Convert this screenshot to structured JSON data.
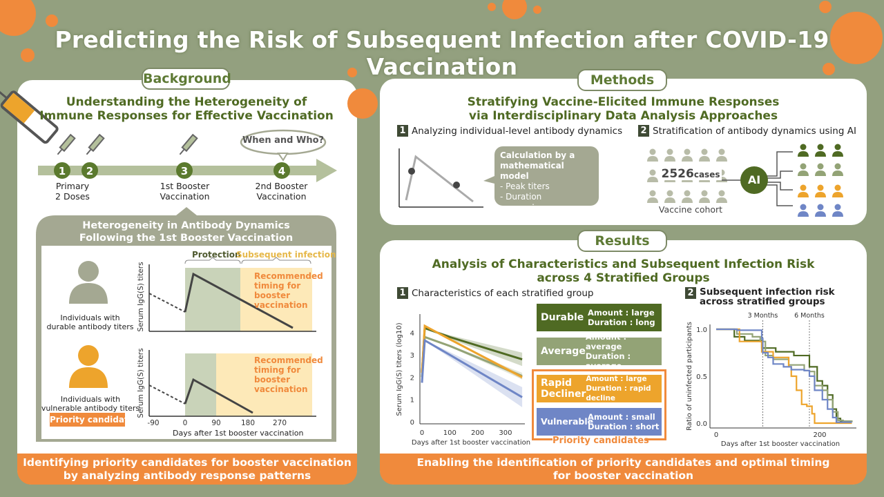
{
  "title": "Predicting the Risk of Subsequent Infection after COVID-19 Vaccination",
  "colors": {
    "background": "#93a07f",
    "dark_green": "#4f6a23",
    "light_green": "#93a376",
    "orange": "#f08a3c",
    "amber": "#eda42c",
    "blue": "#6f86c6",
    "gray": "#a4a892"
  },
  "background": {
    "pill": "Background",
    "heading_1": "Understanding the Heterogeneity of",
    "heading_2": "Immune Responses for Effective Vaccination",
    "timeline": [
      {
        "num": "1",
        "label": ""
      },
      {
        "num": "2",
        "label": ""
      },
      {
        "num": "3",
        "label": "1st Booster\nVaccination"
      },
      {
        "num": "4",
        "label": "2nd Booster\nVaccination"
      }
    ],
    "primary_label": "Primary\n2 Doses",
    "question": "When and Who?",
    "box_title_1": "Heterogeneity in Antibody Dynamics",
    "box_title_2": "Following the 1st Booster Vaccination",
    "protection": "Protection",
    "subsequent_infection": "Subsequent infection",
    "durable_label": "Individuals with\ndurable antibody titers",
    "vulnerable_label": "Individuals with\nvulnerable antibody titers",
    "priority": "Priority candidates",
    "recommended": "Recommended\ntiming for\nbooster\nvaccination",
    "ylabel": "Serum IgG(S) titers",
    "xticks": [
      "-90",
      "0",
      "90",
      "180",
      "270"
    ],
    "xlabel": "Days after 1st booster vaccination",
    "footer": "Identifying priority candidates for booster vaccination\nby analyzing antibody response patterns"
  },
  "methods": {
    "pill": "Methods",
    "heading_1": "Stratifying Vaccine-Elicited Immune Responses",
    "heading_2": "via Interdisciplinary Data Analysis Approaches",
    "step1_num": "1",
    "step1": "Analyzing individual-level antibody dynamics",
    "bubble_title": "Calculation by a\nmathematical model",
    "bubble_items": [
      "- Peak titers",
      "- Duration",
      "⋮"
    ],
    "step2_num": "2",
    "step2": "Stratification of antibody dynamics using AI",
    "cases_num": "2526",
    "cases_unit": "cases",
    "cohort": "Vaccine cohort",
    "ai": "AI"
  },
  "results": {
    "pill": "Results",
    "heading_1": "Analysis of Characteristics and Subsequent Infection Risk",
    "heading_2": "across 4 Stratified Groups",
    "step1_num": "1",
    "step1": "Characteristics of each stratified group",
    "step2_num": "2",
    "step2": "Subsequent infection risk\nacross stratified groups",
    "groups": [
      {
        "name": "Durable",
        "amount": "Amount  : large",
        "duration": "Duration : long"
      },
      {
        "name": "Average",
        "amount": "Amount  : average",
        "duration": "Duration : average"
      },
      {
        "name": "Rapid\nDecliner",
        "amount": "Amount : large",
        "duration": "Duration : rapid decline"
      },
      {
        "name": "Vulnerable",
        "amount": "Amount  : small",
        "duration": "Duration : short"
      }
    ],
    "priority": "Priority candidates",
    "footer": "Enabling the identification of priority candidates and optimal timing\nfor booster vaccination"
  },
  "chart_data": [
    {
      "type": "line",
      "title": "Characteristics of each stratified group",
      "xlabel": "Days after 1st booster vaccination",
      "ylabel": "Serum IgG(S) titers (log10)",
      "xlim": [
        0,
        370
      ],
      "ylim": [
        0,
        4.5
      ],
      "xticks": [
        "0",
        "100",
        "200",
        "300"
      ],
      "yticks": [
        "0",
        "1",
        "2",
        "3",
        "4"
      ],
      "series": [
        {
          "name": "Durable",
          "color": "#4f6a23",
          "points": [
            [
              0,
              2.2
            ],
            [
              10,
              4.2
            ],
            [
              100,
              3.8
            ],
            [
              360,
              2.8
            ]
          ],
          "band": 0.3
        },
        {
          "name": "Average",
          "color": "#93a376",
          "points": [
            [
              0,
              2.0
            ],
            [
              10,
              3.8
            ],
            [
              100,
              3.4
            ],
            [
              360,
              2.05
            ]
          ],
          "band": 0.15
        },
        {
          "name": "Rapid Decliner",
          "color": "#eda42c",
          "points": [
            [
              0,
              2.2
            ],
            [
              10,
              4.3
            ],
            [
              100,
              3.7
            ],
            [
              360,
              2.0
            ]
          ],
          "band": 0.1
        },
        {
          "name": "Vulnerable",
          "color": "#6f86c6",
          "points": [
            [
              0,
              1.75
            ],
            [
              10,
              3.65
            ],
            [
              100,
              3.0
            ],
            [
              360,
              1.1
            ]
          ],
          "band": 0.45
        }
      ]
    },
    {
      "type": "line",
      "title": "Subsequent infection risk across stratified groups",
      "xlabel": "Days after 1st booster vaccination",
      "ylabel": "Ratio of uninfected participants",
      "xlim": [
        0,
        270
      ],
      "ylim": [
        0,
        1
      ],
      "xticks": [
        "0",
        "200"
      ],
      "yticks": [
        "0.0",
        "0.5",
        "1.0"
      ],
      "annotations": [
        {
          "x": 90,
          "label": "3 Months"
        },
        {
          "x": 180,
          "label": "6 Months"
        }
      ],
      "series": [
        {
          "name": "Durable",
          "color": "#4f6a23",
          "points": [
            [
              0,
              1
            ],
            [
              35,
              1
            ],
            [
              35,
              0.92
            ],
            [
              55,
              0.92
            ],
            [
              55,
              0.88
            ],
            [
              85,
              0.88
            ],
            [
              88,
              0.8
            ],
            [
              115,
              0.8
            ],
            [
              115,
              0.76
            ],
            [
              150,
              0.72
            ],
            [
              175,
              0.72
            ],
            [
              180,
              0.6
            ],
            [
              195,
              0.45
            ],
            [
              205,
              0.4
            ],
            [
              215,
              0.3
            ],
            [
              225,
              0.15
            ],
            [
              232,
              0.05
            ],
            [
              240,
              0.02
            ],
            [
              262,
              0.02
            ]
          ]
        },
        {
          "name": "Average",
          "color": "#93a376",
          "points": [
            [
              0,
              1
            ],
            [
              35,
              1
            ],
            [
              40,
              0.95
            ],
            [
              70,
              0.92
            ],
            [
              85,
              0.87
            ],
            [
              95,
              0.72
            ],
            [
              110,
              0.68
            ],
            [
              140,
              0.62
            ],
            [
              170,
              0.56
            ],
            [
              180,
              0.55
            ],
            [
              190,
              0.4
            ],
            [
              205,
              0.35
            ],
            [
              215,
              0.25
            ],
            [
              225,
              0.12
            ],
            [
              235,
              0.03
            ],
            [
              245,
              0.02
            ],
            [
              262,
              0.01
            ]
          ]
        },
        {
          "name": "Rapid Decliner",
          "color": "#eda42c",
          "points": [
            [
              0,
              1
            ],
            [
              40,
              1
            ],
            [
              45,
              0.87
            ],
            [
              85,
              0.87
            ],
            [
              88,
              0.76
            ],
            [
              105,
              0.76
            ],
            [
              110,
              0.7
            ],
            [
              140,
              0.6
            ],
            [
              145,
              0.5
            ],
            [
              155,
              0.35
            ],
            [
              165,
              0.2
            ],
            [
              175,
              0.18
            ],
            [
              185,
              0.1
            ],
            [
              190,
              0
            ],
            [
              262,
              0
            ]
          ]
        },
        {
          "name": "Vulnerable",
          "color": "#6f86c6",
          "points": [
            [
              0,
              1
            ],
            [
              35,
              1
            ],
            [
              40,
              0.99
            ],
            [
              80,
              0.99
            ],
            [
              88,
              0.9
            ],
            [
              90,
              0.75
            ],
            [
              100,
              0.7
            ],
            [
              110,
              0.63
            ],
            [
              130,
              0.6
            ],
            [
              145,
              0.57
            ],
            [
              170,
              0.56
            ],
            [
              180,
              0.5
            ],
            [
              190,
              0.35
            ],
            [
              205,
              0.25
            ],
            [
              215,
              0.15
            ],
            [
              225,
              0.06
            ],
            [
              232,
              0.01
            ],
            [
              262,
              0.01
            ]
          ]
        }
      ]
    }
  ]
}
